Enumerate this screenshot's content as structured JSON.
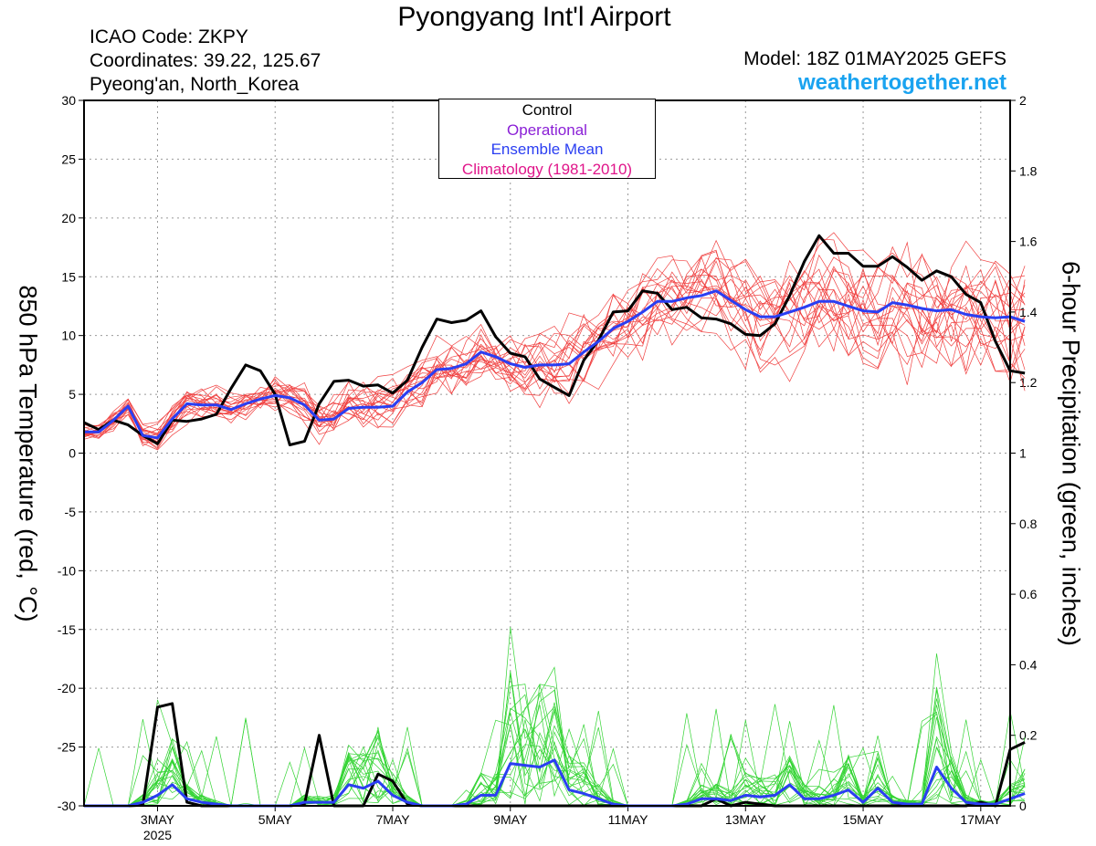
{
  "header": {
    "title": "Pyongyang Int'l Airport",
    "icao": "ICAO Code: ZKPY",
    "coords": "Coordinates: 39.22, 125.67",
    "region": "Pyeong'an, North_Korea",
    "model": "Model: 18Z 01MAY2025 GEFS",
    "brand": "weathertogether.net"
  },
  "colors": {
    "control": "#000000",
    "operational": "#8a1fd6",
    "ensemble_mean": "#2a3ef2",
    "climatology": "#e0158a",
    "temp_members": "#f04040",
    "precip_members": "#33d433",
    "brand": "#1aa3f0"
  },
  "chart_data": {
    "type": "line",
    "xlabel_ticks": [
      "3MAY",
      "5MAY",
      "7MAY",
      "9MAY",
      "11MAY",
      "13MAY",
      "15MAY",
      "17MAY"
    ],
    "xlabel_year": "2025",
    "x_range_days": [
      1.75,
      17.5
    ],
    "ylabel_left": "850 hPa Temperature (red, °C)",
    "ylabel_right": "6-hour Precipitation (green, inches)",
    "ylim_left": [
      -30,
      30
    ],
    "ylim_right": [
      0,
      2
    ],
    "yticks_left": [
      30,
      25,
      20,
      15,
      10,
      5,
      0,
      -5,
      -10,
      -15,
      -20,
      -25,
      -30
    ],
    "yticks_right": [
      2,
      1.8,
      1.6,
      1.4,
      1.2,
      1,
      0.8,
      0.6,
      0.4,
      0.2,
      0
    ],
    "legend": [
      "Control",
      "Operational",
      "Ensemble Mean",
      "Climatology (1981-2010)"
    ],
    "legend_placement": "top-center",
    "grid": true,
    "series": [
      {
        "name": "Control",
        "axis": "temperature",
        "values": [
          2.6,
          2,
          2.8,
          2.4,
          1.5,
          0.8,
          2.8,
          2.7,
          2.9,
          3.3,
          5.5,
          7.5,
          7,
          5,
          0.7,
          1,
          4.2,
          6.1,
          6.2,
          5.7,
          5.8,
          5.1,
          6.2,
          9,
          11.4,
          11.1,
          11.3,
          12.1,
          9.9,
          8.5,
          8.2,
          6.3,
          5.6,
          4.9,
          7.9,
          9.6,
          12,
          12.1,
          13.8,
          13.6,
          12.2,
          12.4,
          11.5,
          11.4,
          11,
          10.1,
          10,
          11,
          13.4,
          16.3,
          18.5,
          17,
          17,
          15.9,
          15.9,
          16.7,
          15.8,
          14.7,
          15.5,
          15,
          13.5,
          12.8,
          9.5,
          7,
          6.8
        ]
      },
      {
        "name": "Ensemble Mean",
        "axis": "temperature",
        "values": [
          1.8,
          1.8,
          2.8,
          4,
          1.5,
          1.3,
          2.9,
          4.2,
          4.1,
          4.1,
          3.7,
          4.2,
          4.6,
          4.9,
          4.7,
          4.1,
          2.8,
          2.9,
          3.8,
          3.9,
          3.9,
          4,
          5.2,
          6,
          7.1,
          7.2,
          7.6,
          8.6,
          8.2,
          7.6,
          7.3,
          7.5,
          7.5,
          7.6,
          8.6,
          9.5,
          10.6,
          11.2,
          12,
          12.9,
          12.9,
          13.2,
          13.4,
          13.8,
          13,
          12.2,
          11.6,
          11.6,
          12,
          12.4,
          12.9,
          12.9,
          12.5,
          12.1,
          12,
          12.8,
          12.6,
          12.3,
          12.1,
          12.2,
          11.8,
          11.6,
          11.5,
          11.6,
          11.2
        ]
      },
      {
        "name": "Control",
        "axis": "precipitation",
        "values": [
          0,
          0,
          0,
          0,
          0.002,
          0.28,
          0.29,
          0.01,
          0,
          0,
          0,
          0,
          0,
          0,
          0,
          0.005,
          0.2,
          0,
          0,
          0,
          0.09,
          0.07,
          0.005,
          0,
          0,
          0,
          0,
          0,
          0,
          0,
          0,
          0,
          0,
          0,
          0,
          0,
          0,
          0,
          0,
          0,
          0,
          0,
          0,
          0.02,
          0,
          0.01,
          0.005,
          0,
          0,
          0,
          0,
          0,
          0,
          0,
          0,
          0,
          0,
          0,
          0,
          0,
          0,
          0.01,
          0,
          0.16,
          0.18
        ]
      },
      {
        "name": "Ensemble Mean",
        "axis": "precipitation",
        "values": [
          0,
          0,
          0,
          0,
          0.01,
          0.03,
          0.06,
          0.02,
          0.01,
          0.005,
          0,
          0,
          0,
          0,
          0,
          0.01,
          0.01,
          0.01,
          0.06,
          0.05,
          0.07,
          0.03,
          0.01,
          0,
          0,
          0,
          0.005,
          0.03,
          0.03,
          0.12,
          0.115,
          0.11,
          0.13,
          0.045,
          0.035,
          0.02,
          0.005,
          0,
          0,
          0,
          0,
          0.005,
          0.02,
          0.02,
          0.015,
          0.03,
          0.025,
          0.03,
          0.06,
          0.02,
          0.02,
          0.03,
          0.045,
          0.01,
          0.05,
          0.01,
          0.005,
          0.005,
          0.11,
          0.05,
          0.01,
          0.005,
          0.005,
          0.02,
          0.035
        ]
      }
    ]
  }
}
